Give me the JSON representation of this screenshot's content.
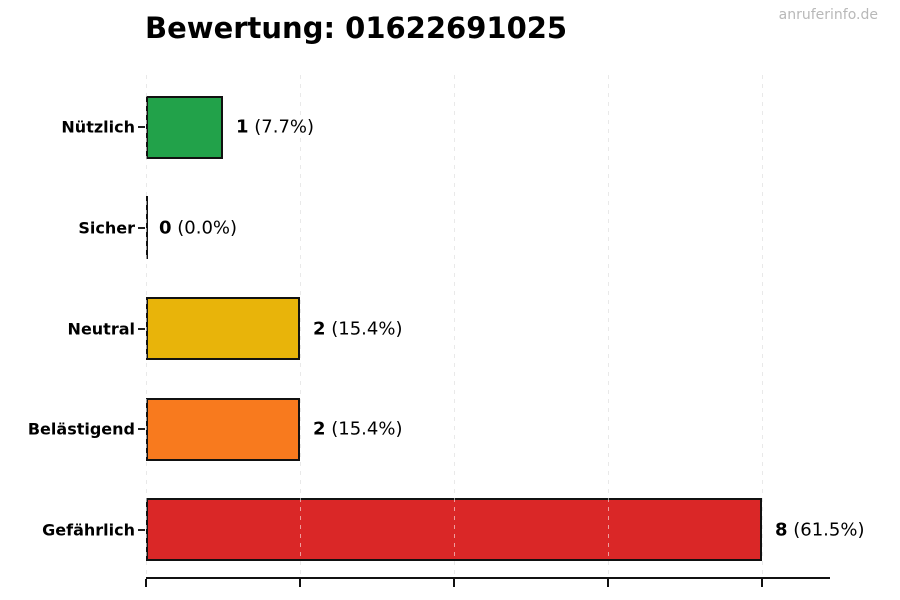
{
  "watermark": "anruferinfo.de",
  "chart_data": {
    "type": "bar",
    "orientation": "horizontal",
    "title": "Bewertung: 01622691025",
    "categories": [
      "Nützlich",
      "Sicher",
      "Neutral",
      "Belästigend",
      "Gefährlich"
    ],
    "values": [
      1,
      0,
      2,
      2,
      8
    ],
    "percent_labels": [
      "(7.7%)",
      "(0.0%)",
      "(15.4%)",
      "(15.4%)",
      "(61.5%)"
    ],
    "bar_colors": [
      "#22a24a",
      null,
      "#e8b40a",
      "#f87a1e",
      "#da2727"
    ],
    "bar_edge_color": "#111111",
    "x_ticks": [
      0,
      2,
      4,
      6,
      8
    ],
    "xlim": [
      0,
      8.9
    ],
    "x_tick_labels_visible": false,
    "grid": "dashed-vertical",
    "legend": "none"
  }
}
